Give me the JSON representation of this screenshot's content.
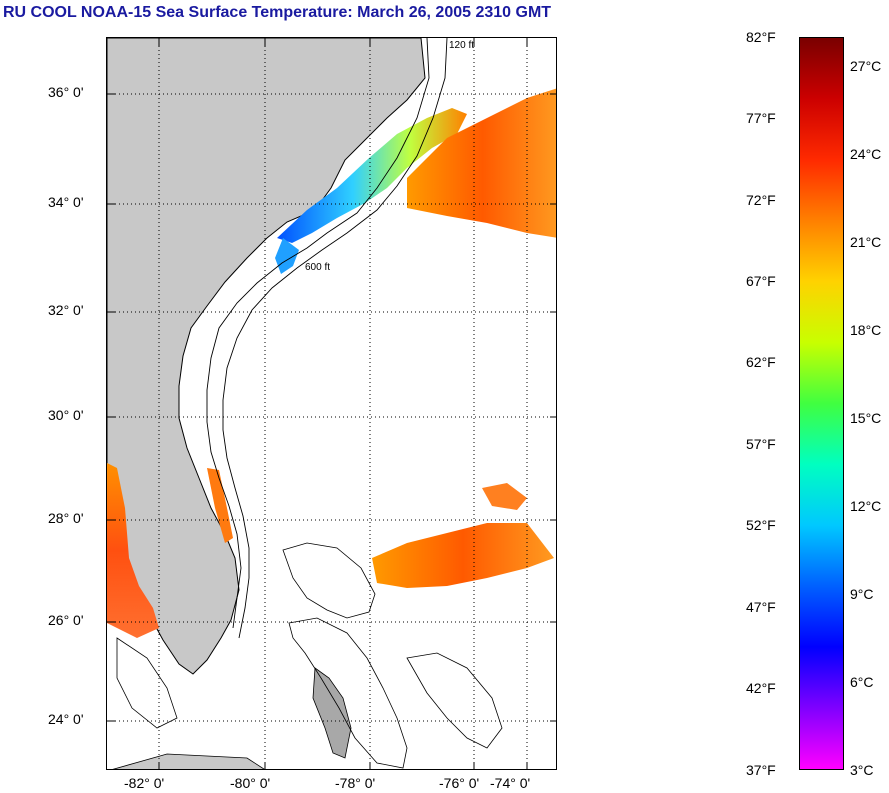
{
  "title": "RU COOL  NOAA-15  Sea Surface Temperature:  March 26, 2005 2310 GMT",
  "map": {
    "lat_labels": [
      "36° 0'",
      "34° 0'",
      "32° 0'",
      "30° 0'",
      "28° 0'",
      "26° 0'",
      "24° 0'"
    ],
    "lon_labels": [
      "-82° 0'",
      "-80° 0'",
      "-78° 0'",
      "-76° 0'",
      "-74° 0'"
    ],
    "contour_labels": [
      "120 ft",
      "600 ft"
    ],
    "colors": {
      "land": "#c8c8c8",
      "cloud": "#ffffff",
      "grid": "#000000"
    }
  },
  "colorbar": {
    "fahrenheit_labels": [
      "82°F",
      "77°F",
      "72°F",
      "67°F",
      "62°F",
      "57°F",
      "52°F",
      "47°F",
      "42°F",
      "37°F"
    ],
    "celsius_labels": [
      "27°C",
      "24°C",
      "21°C",
      "18°C",
      "15°C",
      "12°C",
      "9°C",
      "6°C",
      "3°C"
    ],
    "gradient": [
      "#7a0000",
      "#cc0000",
      "#ff2a00",
      "#ff8000",
      "#ffd200",
      "#c8ff00",
      "#40ff40",
      "#00ffc0",
      "#00c8ff",
      "#0060ff",
      "#0000ff",
      "#8000ff",
      "#ff00ff"
    ]
  }
}
